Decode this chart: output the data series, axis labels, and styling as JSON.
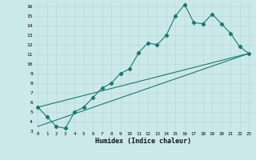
{
  "xlabel": "Humidex (Indice chaleur)",
  "bg_color": "#cce9e9",
  "line_color": "#1a7a6e",
  "grid_color": "#b8d8d8",
  "xlim": [
    -0.5,
    23.5
  ],
  "ylim": [
    3,
    16.5
  ],
  "xticks": [
    0,
    1,
    2,
    3,
    4,
    5,
    6,
    7,
    8,
    9,
    10,
    11,
    12,
    13,
    14,
    15,
    16,
    17,
    18,
    19,
    20,
    21,
    22,
    23
  ],
  "yticks": [
    3,
    4,
    5,
    6,
    7,
    8,
    9,
    10,
    11,
    12,
    13,
    14,
    15,
    16
  ],
  "series_main": {
    "x": [
      0,
      1,
      2,
      3,
      4,
      5,
      6,
      7,
      8,
      9,
      10,
      11,
      12,
      13,
      14,
      15,
      16,
      17,
      18,
      19,
      20,
      21,
      22,
      23
    ],
    "y": [
      5.5,
      4.5,
      3.5,
      3.3,
      5.0,
      5.5,
      6.5,
      7.5,
      8.0,
      9.0,
      9.5,
      11.2,
      12.2,
      12.0,
      13.0,
      15.0,
      16.2,
      14.3,
      14.2,
      15.2,
      14.2,
      13.2,
      11.8,
      11.1
    ]
  },
  "series_lower": {
    "x": [
      0,
      23
    ],
    "y": [
      3.5,
      11.1
    ]
  },
  "series_upper": {
    "x": [
      0,
      23
    ],
    "y": [
      5.5,
      11.1
    ]
  }
}
